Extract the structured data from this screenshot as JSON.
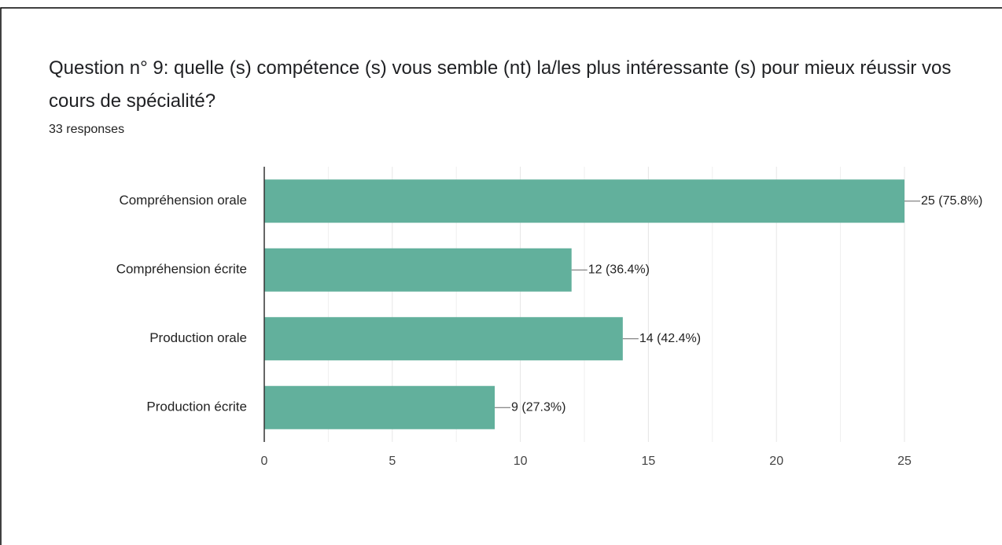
{
  "chart_data": {
    "type": "hbar",
    "title": "Question n° 9: quelle (s) compétence (s) vous semble (nt) la/les plus intéressante (s) pour mieux réussir vos cours de spécialité?",
    "subtitle": "33 responses",
    "categories": [
      "Compréhension orale",
      "Compréhension écrite",
      "Production orale",
      "Production écrite"
    ],
    "values": [
      25,
      12,
      14,
      9
    ],
    "value_labels": [
      "25 (75.8%)",
      "12 (36.4%)",
      "14 (42.4%)",
      "9 (27.3%)"
    ],
    "color": "#62b09c",
    "xlim": [
      0,
      25
    ],
    "xticks": [
      0,
      5,
      10,
      15,
      20,
      25
    ],
    "grid": true,
    "minor_grid": true
  }
}
